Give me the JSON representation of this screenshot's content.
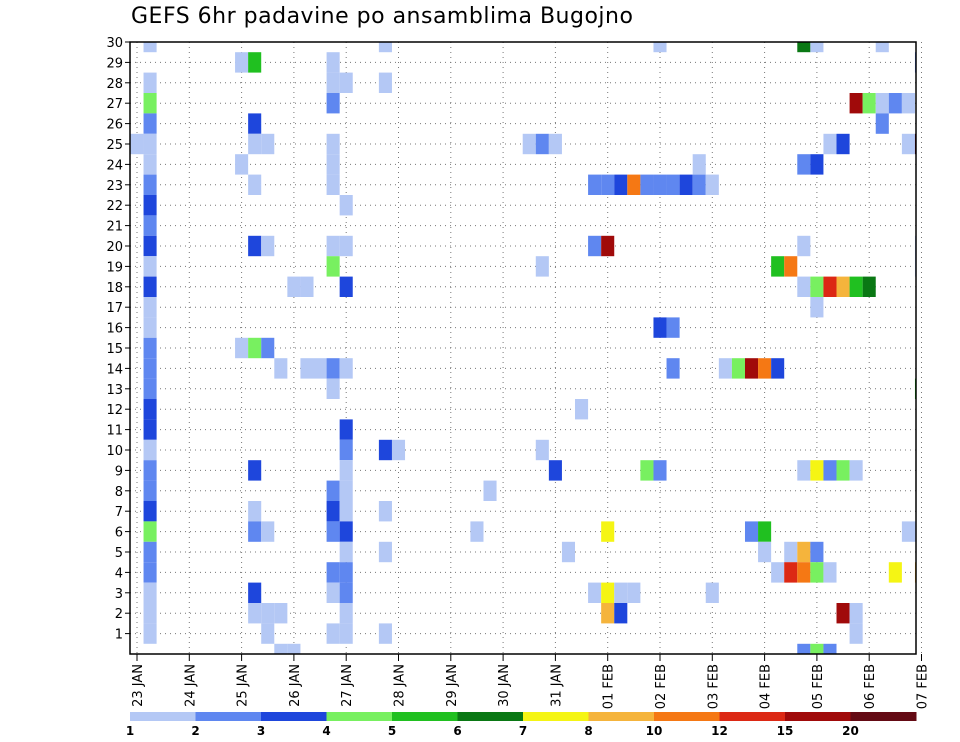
{
  "chart_data": {
    "type": "heatmap",
    "title": "GEFS 6hr padavine po ansamblima Bugojno",
    "xlabel": "",
    "ylabel": "",
    "x_ticks": [
      "23 JAN",
      "24 JAN",
      "25 JAN",
      "26 JAN",
      "27 JAN",
      "28 JAN",
      "29 JAN",
      "30 JAN",
      "31 JAN",
      "01 FEB",
      "02 FEB",
      "03 FEB",
      "04 FEB",
      "05 FEB",
      "06 FEB",
      "07 FEB"
    ],
    "y_ticks": [
      "1",
      "2",
      "3",
      "4",
      "5",
      "6",
      "7",
      "8",
      "9",
      "10",
      "11",
      "12",
      "13",
      "14",
      "15",
      "16",
      "17",
      "18",
      "19",
      "20",
      "21",
      "22",
      "23",
      "24",
      "25",
      "26",
      "27",
      "28",
      "29",
      "30"
    ],
    "ylim": [
      0,
      30
    ],
    "x_unit": "6-hour steps since 23 JAN 00Z",
    "grid": true,
    "colorbar": {
      "labels": [
        "1",
        "2",
        "3",
        "4",
        "5",
        "6",
        "7",
        "8",
        "10",
        "12",
        "15",
        "20"
      ],
      "colors": [
        "#b4c8f5",
        "#5f87f0",
        "#1e46dc",
        "#78f060",
        "#20c020",
        "#0a7814",
        "#f5f514",
        "#f5b43c",
        "#f57814",
        "#dc2814",
        "#a00a0a",
        "#640a14"
      ]
    },
    "levels_legend": {
      "1": "#b4c8f5",
      "2": "#5f87f0",
      "3": "#1e46dc",
      "4": "#78f060",
      "5": "#20c020",
      "6": "#0a7814",
      "7": "#f5f514",
      "8": "#f5b43c",
      "9": "#f57814",
      "10": "#dc2814",
      "11": "#a00a0a",
      "12": "#640a14"
    },
    "cells_format": "[step, member, level]",
    "cells": [
      [
        1,
        30,
        1
      ],
      [
        1,
        28,
        1
      ],
      [
        1,
        27,
        4
      ],
      [
        1,
        26,
        2
      ],
      [
        1,
        25,
        1
      ],
      [
        1,
        24,
        1
      ],
      [
        1,
        23,
        2
      ],
      [
        1,
        22,
        3
      ],
      [
        1,
        21,
        2
      ],
      [
        1,
        20,
        3
      ],
      [
        1,
        19,
        1
      ],
      [
        1,
        18,
        3
      ],
      [
        1,
        17,
        1
      ],
      [
        1,
        16,
        1
      ],
      [
        1,
        15,
        2
      ],
      [
        1,
        14,
        2
      ],
      [
        1,
        13,
        2
      ],
      [
        1,
        12,
        3
      ],
      [
        1,
        11,
        3
      ],
      [
        1,
        10,
        1
      ],
      [
        1,
        9,
        2
      ],
      [
        1,
        8,
        2
      ],
      [
        1,
        7,
        3
      ],
      [
        1,
        6,
        4
      ],
      [
        1,
        5,
        2
      ],
      [
        1,
        4,
        2
      ],
      [
        1,
        3,
        1
      ],
      [
        1,
        2,
        1
      ],
      [
        1,
        1,
        1
      ],
      [
        0,
        25,
        1
      ],
      [
        8,
        29,
        1
      ],
      [
        8,
        24,
        1
      ],
      [
        8,
        15,
        1
      ],
      [
        9,
        29,
        5
      ],
      [
        9,
        26,
        3
      ],
      [
        9,
        25,
        1
      ],
      [
        9,
        23,
        1
      ],
      [
        9,
        20,
        3
      ],
      [
        9,
        15,
        4
      ],
      [
        9,
        9,
        3
      ],
      [
        9,
        7,
        1
      ],
      [
        9,
        6,
        2
      ],
      [
        9,
        3,
        3
      ],
      [
        9,
        2,
        1
      ],
      [
        10,
        25,
        1
      ],
      [
        10,
        20,
        1
      ],
      [
        10,
        15,
        2
      ],
      [
        10,
        6,
        1
      ],
      [
        10,
        2,
        1
      ],
      [
        10,
        1,
        1
      ],
      [
        11,
        2,
        1
      ],
      [
        11,
        0,
        1
      ],
      [
        11,
        14,
        1
      ],
      [
        12,
        18,
        1
      ],
      [
        12,
        0,
        1
      ],
      [
        13,
        18,
        1
      ],
      [
        13,
        14,
        1
      ],
      [
        14,
        14,
        1
      ],
      [
        15,
        29,
        1
      ],
      [
        15,
        28,
        1
      ],
      [
        15,
        27,
        2
      ],
      [
        15,
        25,
        1
      ],
      [
        15,
        24,
        1
      ],
      [
        15,
        23,
        1
      ],
      [
        15,
        20,
        1
      ],
      [
        15,
        19,
        4
      ],
      [
        15,
        14,
        2
      ],
      [
        15,
        13,
        1
      ],
      [
        15,
        8,
        2
      ],
      [
        15,
        7,
        3
      ],
      [
        15,
        6,
        2
      ],
      [
        15,
        4,
        2
      ],
      [
        15,
        3,
        1
      ],
      [
        15,
        1,
        1
      ],
      [
        16,
        28,
        1
      ],
      [
        16,
        22,
        1
      ],
      [
        16,
        20,
        1
      ],
      [
        16,
        18,
        3
      ],
      [
        16,
        14,
        1
      ],
      [
        16,
        11,
        3
      ],
      [
        16,
        10,
        2
      ],
      [
        16,
        9,
        1
      ],
      [
        16,
        8,
        1
      ],
      [
        16,
        7,
        1
      ],
      [
        16,
        6,
        3
      ],
      [
        16,
        5,
        1
      ],
      [
        16,
        4,
        2
      ],
      [
        16,
        3,
        2
      ],
      [
        16,
        2,
        1
      ],
      [
        16,
        1,
        1
      ],
      [
        19,
        30,
        1
      ],
      [
        19,
        28,
        1
      ],
      [
        19,
        10,
        3
      ],
      [
        19,
        7,
        1
      ],
      [
        19,
        5,
        1
      ],
      [
        19,
        1,
        1
      ],
      [
        20,
        10,
        1
      ],
      [
        26,
        6,
        1
      ],
      [
        27,
        8,
        1
      ],
      [
        30,
        25,
        1
      ],
      [
        31,
        25,
        2
      ],
      [
        31,
        19,
        1
      ],
      [
        31,
        10,
        1
      ],
      [
        32,
        25,
        1
      ],
      [
        32,
        9,
        3
      ],
      [
        33,
        5,
        1
      ],
      [
        34,
        12,
        1
      ],
      [
        35,
        23,
        2
      ],
      [
        35,
        20,
        2
      ],
      [
        35,
        3,
        1
      ],
      [
        36,
        23,
        2
      ],
      [
        36,
        20,
        11
      ],
      [
        36,
        6,
        7
      ],
      [
        36,
        3,
        7
      ],
      [
        36,
        2,
        8
      ],
      [
        37,
        23,
        3
      ],
      [
        37,
        2,
        3
      ],
      [
        37,
        3,
        1
      ],
      [
        38,
        23,
        9
      ],
      [
        38,
        3,
        1
      ],
      [
        39,
        23,
        2
      ],
      [
        39,
        9,
        4
      ],
      [
        40,
        30,
        1
      ],
      [
        40,
        23,
        2
      ],
      [
        40,
        16,
        3
      ],
      [
        40,
        9,
        2
      ],
      [
        41,
        23,
        2
      ],
      [
        41,
        16,
        2
      ],
      [
        41,
        14,
        2
      ],
      [
        42,
        23,
        3
      ],
      [
        43,
        24,
        1
      ],
      [
        43,
        23,
        2
      ],
      [
        44,
        23,
        1
      ],
      [
        44,
        3,
        1
      ],
      [
        45,
        14,
        1
      ],
      [
        46,
        14,
        4
      ],
      [
        47,
        14,
        11
      ],
      [
        47,
        6,
        2
      ],
      [
        48,
        14,
        9
      ],
      [
        48,
        6,
        5
      ],
      [
        48,
        5,
        1
      ],
      [
        49,
        19,
        5
      ],
      [
        49,
        14,
        3
      ],
      [
        49,
        4,
        1
      ],
      [
        50,
        19,
        9
      ],
      [
        50,
        5,
        1
      ],
      [
        50,
        4,
        10
      ],
      [
        51,
        30,
        6
      ],
      [
        51,
        24,
        2
      ],
      [
        51,
        20,
        1
      ],
      [
        51,
        18,
        1
      ],
      [
        51,
        9,
        1
      ],
      [
        51,
        5,
        8
      ],
      [
        51,
        4,
        9
      ],
      [
        51,
        0,
        2
      ],
      [
        52,
        30,
        1
      ],
      [
        52,
        24,
        3
      ],
      [
        52,
        18,
        4
      ],
      [
        52,
        17,
        1
      ],
      [
        52,
        9,
        7
      ],
      [
        52,
        5,
        2
      ],
      [
        52,
        4,
        4
      ],
      [
        52,
        0,
        4
      ],
      [
        53,
        25,
        1
      ],
      [
        53,
        18,
        10
      ],
      [
        53,
        9,
        2
      ],
      [
        53,
        4,
        1
      ],
      [
        53,
        0,
        2
      ],
      [
        54,
        25,
        3
      ],
      [
        54,
        18,
        8
      ],
      [
        54,
        9,
        4
      ],
      [
        54,
        2,
        11
      ],
      [
        55,
        27,
        11
      ],
      [
        55,
        18,
        5
      ],
      [
        55,
        9,
        1
      ],
      [
        55,
        1,
        1
      ],
      [
        55,
        2,
        1
      ],
      [
        56,
        27,
        4
      ],
      [
        56,
        18,
        6
      ],
      [
        57,
        27,
        1
      ],
      [
        57,
        30,
        1
      ],
      [
        57,
        26,
        2
      ],
      [
        58,
        27,
        2
      ],
      [
        58,
        4,
        7
      ],
      [
        59,
        27,
        1
      ],
      [
        59,
        25,
        1
      ],
      [
        59,
        6,
        1
      ],
      [
        60,
        29,
        2
      ],
      [
        60,
        25,
        12
      ],
      [
        60,
        20,
        1
      ],
      [
        60,
        19,
        1
      ],
      [
        60,
        13,
        5
      ],
      [
        60,
        4,
        8
      ],
      [
        60,
        6,
        1
      ],
      [
        61,
        29,
        5
      ],
      [
        61,
        25,
        3
      ],
      [
        61,
        19,
        5
      ],
      [
        61,
        13,
        9
      ],
      [
        61,
        4,
        7
      ],
      [
        62,
        27,
        1
      ],
      [
        62,
        26,
        8
      ],
      [
        62,
        25,
        3
      ],
      [
        62,
        4,
        3
      ],
      [
        63,
        28,
        4
      ],
      [
        63,
        27,
        1
      ],
      [
        63,
        26,
        1
      ],
      [
        63,
        25,
        1
      ],
      [
        63,
        23,
        3
      ],
      [
        63,
        16,
        1
      ]
    ]
  }
}
